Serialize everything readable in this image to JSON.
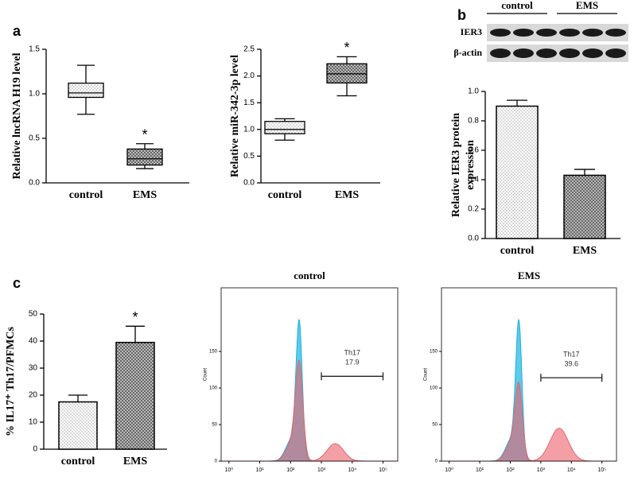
{
  "chart_data": [
    {
      "type": "box",
      "panel": "a",
      "ylabel": "Relative lncRNA H19 level",
      "categories": [
        "control",
        "EMS"
      ],
      "boxes": [
        {
          "min": 0.77,
          "q1": 0.96,
          "median": 1.01,
          "q3": 1.12,
          "max": 1.32
        },
        {
          "min": 0.16,
          "q1": 0.2,
          "median": 0.27,
          "q3": 0.38,
          "max": 0.44
        }
      ],
      "annotation": "*",
      "ylim": [
        0,
        1.5
      ],
      "yticks": [
        {
          "value": 0,
          "label": "0.0"
        },
        {
          "value": 0.5,
          "label": "0.5"
        },
        {
          "value": 1,
          "label": "1.0"
        },
        {
          "value": 1.5,
          "label": "1.5"
        }
      ]
    },
    {
      "type": "box",
      "ylabel": "Relative miR-342-3p level",
      "categories": [
        "control",
        "EMS"
      ],
      "boxes": [
        {
          "min": 0.8,
          "q1": 0.92,
          "median": 1.0,
          "q3": 1.15,
          "max": 1.2
        },
        {
          "min": 1.63,
          "q1": 1.87,
          "median": 2.04,
          "q3": 2.23,
          "max": 2.36
        }
      ],
      "annotation": "*",
      "ylim": [
        0,
        2.5
      ],
      "yticks": [
        {
          "value": 0,
          "label": "0.0"
        },
        {
          "value": 0.5,
          "label": "0.5"
        },
        {
          "value": 1,
          "label": "1.0"
        },
        {
          "value": 1.5,
          "label": "1.5"
        },
        {
          "value": 2,
          "label": "2.0"
        },
        {
          "value": 2.5,
          "label": "2.5"
        }
      ]
    },
    {
      "type": "blot",
      "panel": "b",
      "groups": [
        "control",
        "EMS"
      ],
      "rows": [
        "IER3",
        "β-actin"
      ]
    },
    {
      "type": "bar",
      "ylabel": [
        "Relative  IER3 protein",
        "expression"
      ],
      "categories": [
        "control",
        "EMS"
      ],
      "values": [
        0.9,
        0.43
      ],
      "errors": [
        0.04,
        0.04
      ],
      "ylim": [
        0,
        1
      ],
      "yticks": [
        {
          "value": 0,
          "label": "0.0"
        },
        {
          "value": 0.2,
          "label": "0.2"
        },
        {
          "value": 0.4,
          "label": "0.4"
        },
        {
          "value": 0.6,
          "label": "0.6"
        },
        {
          "value": 0.8,
          "label": "0.8"
        },
        {
          "value": 1,
          "label": "1.0"
        }
      ]
    },
    {
      "type": "bar",
      "panel": "c",
      "ylabel": "% IL17⁺ Th17/PFMCs",
      "categories": [
        "control",
        "EMS"
      ],
      "values": [
        17.5,
        39.5
      ],
      "errors": [
        2.5,
        6
      ],
      "annotation": "*",
      "ylim": [
        0,
        50
      ],
      "yticks": [
        0,
        10,
        20,
        30,
        40,
        50
      ]
    },
    {
      "type": "flow",
      "title": "control",
      "ylabel": "Count",
      "gate": {
        "label": "Th17",
        "value": 17.9
      },
      "log_x": true,
      "xlim": [
        0.56,
        300000
      ],
      "ylim": [
        0,
        237
      ],
      "yticks": [
        0,
        50,
        100,
        150
      ],
      "xticks": [
        {
          "value": 1,
          "label": "10⁰"
        },
        {
          "value": 10,
          "label": "10¹"
        },
        {
          "value": 100,
          "label": "10²"
        },
        {
          "value": 1000,
          "label": "10³"
        },
        {
          "value": 10000,
          "label": "10⁴"
        },
        {
          "value": 100000,
          "label": "10⁵"
        }
      ]
    },
    {
      "type": "flow",
      "title": "EMS",
      "ylabel": "Count",
      "gate": {
        "label": "Th17",
        "value": 39.6
      },
      "log_x": true,
      "xlim": [
        0.56,
        300000
      ],
      "ylim": [
        0,
        237
      ],
      "yticks": [
        0,
        50,
        100,
        150
      ],
      "xticks": [
        {
          "value": 1,
          "label": "10⁰"
        },
        {
          "value": 10,
          "label": "10¹"
        },
        {
          "value": 100,
          "label": "10²"
        },
        {
          "value": 1000,
          "label": "10³"
        },
        {
          "value": 10000,
          "label": "10⁴"
        },
        {
          "value": 100000,
          "label": "10⁵"
        }
      ]
    }
  ]
}
